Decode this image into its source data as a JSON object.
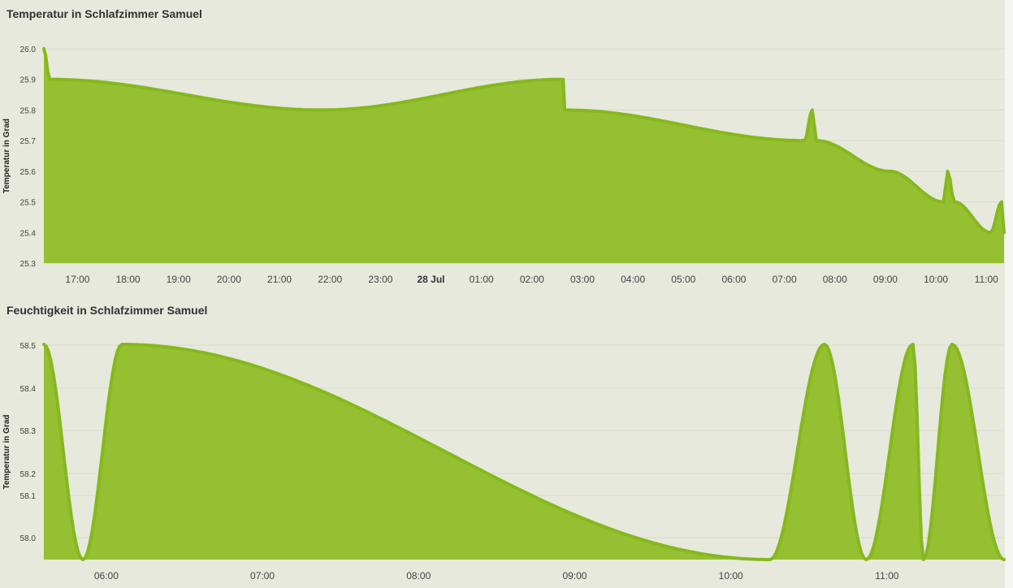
{
  "colors": {
    "fill": "#95c031",
    "line": "#86b81e",
    "background": "#e6e9dc"
  },
  "chart_data": [
    {
      "type": "area",
      "title": "Temperatur in Schlafzimmer Samuel",
      "ylabel": "Temperatur in Grad",
      "xlabel": "",
      "ylim": [
        25.3,
        26.0
      ],
      "yticks": [
        "26.0",
        "25.9",
        "25.8",
        "25.7",
        "25.6",
        "25.5",
        "25.4",
        "25.3"
      ],
      "xlim": [
        "27 Jul 16:20",
        "28 Jul 11:21"
      ],
      "xticks": [
        {
          "t": "27 Jul 17:00",
          "label": "17:00"
        },
        {
          "t": "27 Jul 18:00",
          "label": "18:00"
        },
        {
          "t": "27 Jul 19:00",
          "label": "19:00"
        },
        {
          "t": "27 Jul 20:00",
          "label": "20:00"
        },
        {
          "t": "27 Jul 21:00",
          "label": "21:00"
        },
        {
          "t": "27 Jul 22:00",
          "label": "22:00"
        },
        {
          "t": "27 Jul 23:00",
          "label": "23:00"
        },
        {
          "t": "28 Jul 00:00",
          "label": "28 Jul",
          "bold": true
        },
        {
          "t": "28 Jul 01:00",
          "label": "01:00"
        },
        {
          "t": "28 Jul 02:00",
          "label": "02:00"
        },
        {
          "t": "28 Jul 03:00",
          "label": "03:00"
        },
        {
          "t": "28 Jul 04:00",
          "label": "04:00"
        },
        {
          "t": "28 Jul 05:00",
          "label": "05:00"
        },
        {
          "t": "28 Jul 06:00",
          "label": "06:00"
        },
        {
          "t": "28 Jul 07:00",
          "label": "07:00"
        },
        {
          "t": "28 Jul 08:00",
          "label": "08:00"
        },
        {
          "t": "28 Jul 09:00",
          "label": "09:00"
        },
        {
          "t": "28 Jul 10:00",
          "label": "10:00"
        },
        {
          "t": "28 Jul 11:00",
          "label": "11:00"
        }
      ],
      "grid": true,
      "series": [
        {
          "points": [
            [
              "27 Jul 16:20",
              26.0
            ],
            [
              "27 Jul 16:27",
              25.9
            ],
            [
              "27 Jul 21:50",
              25.8
            ],
            [
              "28 Jul 02:37",
              25.9
            ],
            [
              "28 Jul 02:39",
              25.8
            ],
            [
              "28 Jul 07:24",
              25.7
            ],
            [
              "28 Jul 07:33",
              25.8
            ],
            [
              "28 Jul 07:38",
              25.7
            ],
            [
              "28 Jul 09:05",
              25.6
            ],
            [
              "28 Jul 10:09",
              25.5
            ],
            [
              "28 Jul 10:14",
              25.6
            ],
            [
              "28 Jul 10:22",
              25.5
            ],
            [
              "28 Jul 11:05",
              25.4
            ],
            [
              "28 Jul 11:18",
              25.5
            ],
            [
              "28 Jul 11:21",
              25.4
            ]
          ]
        }
      ]
    },
    {
      "type": "area",
      "title": "Feuchtigkeit in Schlafzimmer Samuel",
      "ylabel": "Temperatur in Grad",
      "xlabel": "",
      "ylim": [
        57.95,
        58.5
      ],
      "yticks": [
        "58.5",
        "58.4",
        "58.3",
        "58.2",
        "58.1",
        "58.0"
      ],
      "xlim": [
        "28 Jul 05:36",
        "28 Jul 11:45"
      ],
      "xticks": [
        {
          "t": "28 Jul 06:00",
          "label": "06:00"
        },
        {
          "t": "28 Jul 07:00",
          "label": "07:00"
        },
        {
          "t": "28 Jul 08:00",
          "label": "08:00"
        },
        {
          "t": "28 Jul 09:00",
          "label": "09:00"
        },
        {
          "t": "28 Jul 10:00",
          "label": "10:00"
        },
        {
          "t": "28 Jul 11:00",
          "label": "11:00"
        }
      ],
      "grid": true,
      "series": [
        {
          "points": [
            [
              "28 Jul 05:36",
              58.5
            ],
            [
              "28 Jul 05:51",
              57.95
            ],
            [
              "28 Jul 06:06",
              58.5
            ],
            [
              "28 Jul 10:15",
              57.95
            ],
            [
              "28 Jul 10:36",
              58.5
            ],
            [
              "28 Jul 10:52",
              57.95
            ],
            [
              "28 Jul 11:10",
              58.5
            ],
            [
              "28 Jul 11:14",
              57.95
            ],
            [
              "28 Jul 11:25",
              58.5
            ],
            [
              "28 Jul 11:45",
              57.95
            ]
          ]
        }
      ]
    }
  ]
}
